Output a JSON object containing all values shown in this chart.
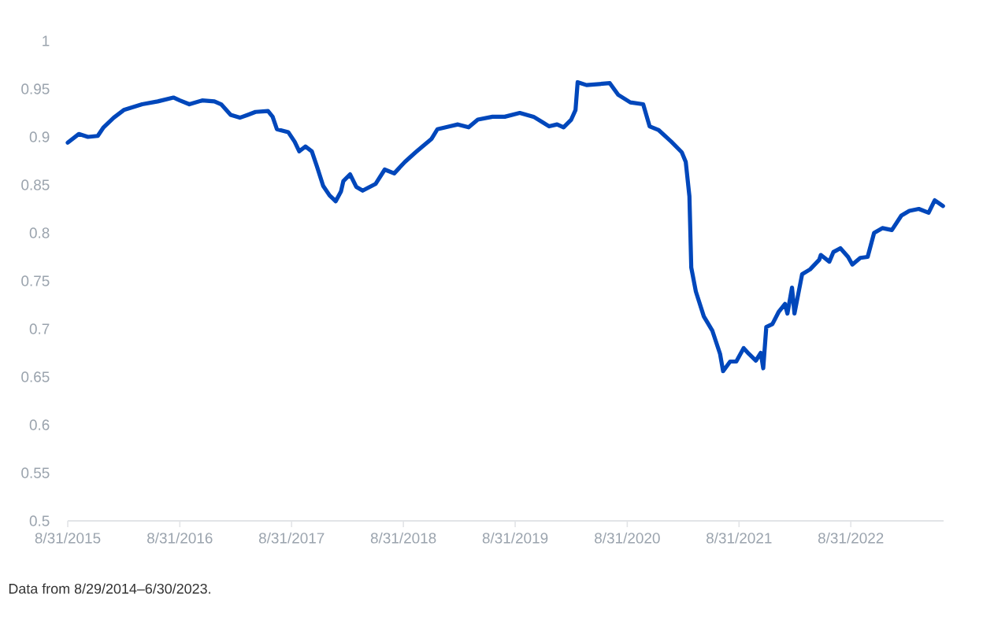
{
  "chart_data": {
    "type": "line",
    "color": "#0047bb",
    "line_style": "solid",
    "x": [
      "2015-08-31",
      "2015-10-06",
      "2015-11-05",
      "2015-12-07",
      "2015-12-26",
      "2016-01-28",
      "2016-03-01",
      "2016-04-30",
      "2016-06-20",
      "2016-08-10",
      "2016-08-31",
      "2016-10-01",
      "2016-11-12",
      "2016-12-22",
      "2017-01-13",
      "2017-02-13",
      "2017-03-15",
      "2017-04-10",
      "2017-05-05",
      "2017-06-15",
      "2017-06-30",
      "2017-07-14",
      "2017-08-20",
      "2017-09-10",
      "2017-09-25",
      "2017-10-15",
      "2017-11-05",
      "2017-11-22",
      "2017-12-12",
      "2018-01-02",
      "2018-01-22",
      "2018-02-08",
      "2018-02-16",
      "2018-03-10",
      "2018-03-30",
      "2018-04-20",
      "2018-06-01",
      "2018-07-01",
      "2018-08-01",
      "2018-09-05",
      "2018-10-10",
      "2018-11-01",
      "2018-12-01",
      "2018-12-20",
      "2019-01-30",
      "2019-02-25",
      "2019-04-01",
      "2019-05-01",
      "2019-06-18",
      "2019-07-28",
      "2019-09-15",
      "2019-10-30",
      "2019-11-30",
      "2019-12-20",
      "2020-01-15",
      "2020-02-05",
      "2020-03-01",
      "2020-03-15",
      "2020-03-22",
      "2020-04-20",
      "2020-07-05",
      "2020-08-01",
      "2020-09-10",
      "2020-10-22",
      "2020-11-12",
      "2020-12-12",
      "2021-01-22",
      "2021-02-25",
      "2021-03-10",
      "2021-03-22",
      "2021-03-28",
      "2021-04-12",
      "2021-05-08",
      "2021-06-05",
      "2021-06-30",
      "2021-07-10",
      "2021-08-02",
      "2021-08-22",
      "2021-09-15",
      "2021-10-02",
      "2021-10-25",
      "2021-11-10",
      "2021-11-18",
      "2021-11-28",
      "2021-12-18",
      "2022-01-08",
      "2022-01-28",
      "2022-02-05",
      "2022-02-20",
      "2022-02-28",
      "2022-03-25",
      "2022-04-20",
      "2022-05-20",
      "2022-05-25",
      "2022-06-22",
      "2022-07-05",
      "2022-07-28",
      "2022-08-22",
      "2022-09-05",
      "2022-10-01",
      "2022-10-25",
      "2022-11-15",
      "2022-12-12",
      "2023-01-12",
      "2023-02-12",
      "2023-03-10",
      "2023-04-10",
      "2023-05-12",
      "2023-06-01",
      "2023-06-28"
    ],
    "values": [
      0.894,
      0.903,
      0.9,
      0.901,
      0.91,
      0.92,
      0.928,
      0.934,
      0.937,
      0.941,
      0.938,
      0.934,
      0.938,
      0.937,
      0.934,
      0.923,
      0.92,
      0.923,
      0.926,
      0.927,
      0.921,
      0.908,
      0.905,
      0.895,
      0.885,
      0.89,
      0.885,
      0.869,
      0.849,
      0.839,
      0.833,
      0.843,
      0.854,
      0.861,
      0.848,
      0.844,
      0.851,
      0.866,
      0.862,
      0.874,
      0.884,
      0.89,
      0.898,
      0.908,
      0.911,
      0.913,
      0.91,
      0.918,
      0.921,
      0.921,
      0.925,
      0.921,
      0.915,
      0.911,
      0.913,
      0.91,
      0.918,
      0.928,
      0.957,
      0.954,
      0.956,
      0.944,
      0.936,
      0.934,
      0.911,
      0.907,
      0.895,
      0.884,
      0.874,
      0.838,
      0.764,
      0.739,
      0.713,
      0.698,
      0.674,
      0.656,
      0.666,
      0.666,
      0.68,
      0.674,
      0.667,
      0.675,
      0.659,
      0.702,
      0.705,
      0.718,
      0.726,
      0.716,
      0.743,
      0.716,
      0.757,
      0.762,
      0.772,
      0.777,
      0.77,
      0.78,
      0.784,
      0.775,
      0.767,
      0.774,
      0.775,
      0.8,
      0.805,
      0.803,
      0.818,
      0.823,
      0.825,
      0.821,
      0.834,
      0.828
    ],
    "xlim": [
      "2015-08-31",
      "2023-06-30"
    ],
    "xticks": [
      {
        "value": "2015-08-31",
        "label": "8/31/2015"
      },
      {
        "value": "2016-08-31",
        "label": "8/31/2016"
      },
      {
        "value": "2017-08-31",
        "label": "8/31/2017"
      },
      {
        "value": "2018-08-31",
        "label": "8/31/2018"
      },
      {
        "value": "2019-08-31",
        "label": "8/31/2019"
      },
      {
        "value": "2020-08-31",
        "label": "8/31/2020"
      },
      {
        "value": "2021-08-31",
        "label": "8/31/2021"
      },
      {
        "value": "2022-08-31",
        "label": "8/31/2022"
      }
    ],
    "ylim": [
      0.5,
      1
    ],
    "yticks": [
      0.5,
      0.55,
      0.6,
      0.65,
      0.7,
      0.75,
      0.8,
      0.85,
      0.9,
      0.95,
      1
    ],
    "annotations": [
      "Data from 8/29/2014–6/30/2023."
    ]
  }
}
